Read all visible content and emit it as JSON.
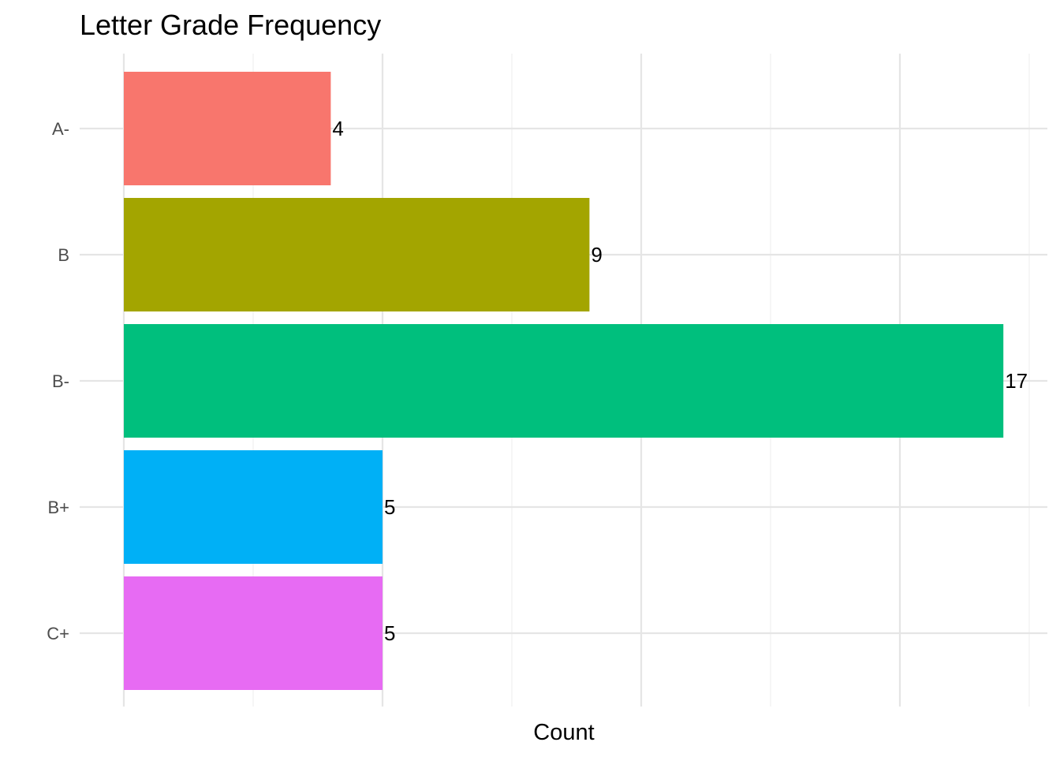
{
  "chart_data": {
    "type": "bar",
    "orientation": "horizontal",
    "title": "Letter Grade Frequency",
    "xlabel": "Count",
    "ylabel": "",
    "categories": [
      "A-",
      "B",
      "B-",
      "B+",
      "C+"
    ],
    "values": [
      4,
      9,
      17,
      5,
      5
    ],
    "data_labels": [
      "4",
      "9",
      "17",
      "5",
      "5"
    ],
    "colors": [
      "#F8766D",
      "#A3A500",
      "#00BF7D",
      "#00B0F6",
      "#E76BF3"
    ],
    "xlim": [
      0,
      17.5
    ],
    "x_ticks_shown": false,
    "grid": true,
    "legend": "none"
  }
}
